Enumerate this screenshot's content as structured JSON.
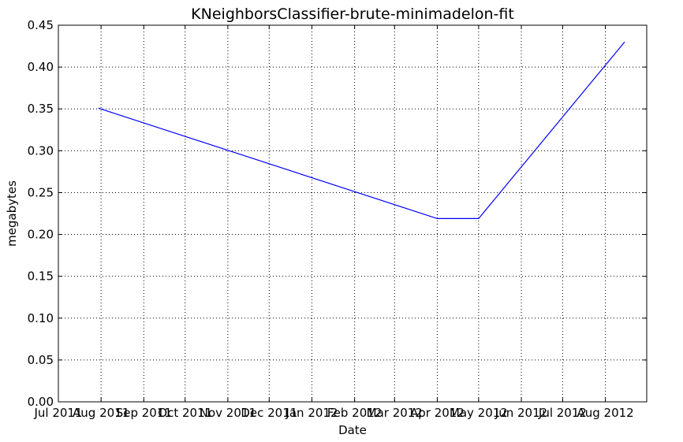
{
  "chart_data": {
    "type": "line",
    "title": "KNeighborsClassifier-brute-minimadelon-fit",
    "xlabel": "Date",
    "ylabel": "megabytes",
    "x_ticks": [
      "Jul 2011",
      "Aug 2011",
      "Sep 2011",
      "Oct 2011",
      "Nov 2011",
      "Dec 2011",
      "Jan 2012",
      "Feb 2012",
      "Mar 2012",
      "Apr 2012",
      "May 2012",
      "Jun 2012",
      "Jul 2012",
      "Aug 2012"
    ],
    "xlim": [
      "2011-07-01",
      "2012-08-31"
    ],
    "y_ticks": [
      "0.00",
      "0.05",
      "0.10",
      "0.15",
      "0.20",
      "0.25",
      "0.30",
      "0.35",
      "0.40",
      "0.45"
    ],
    "ylim": [
      0,
      0.45
    ],
    "grid": true,
    "series": [
      {
        "color": "#0000ff",
        "x": [
          "2011-07-30",
          "2012-04-01",
          "2012-05-01",
          "2012-08-15"
        ],
        "y": [
          0.351,
          0.219,
          0.219,
          0.43
        ]
      }
    ]
  }
}
